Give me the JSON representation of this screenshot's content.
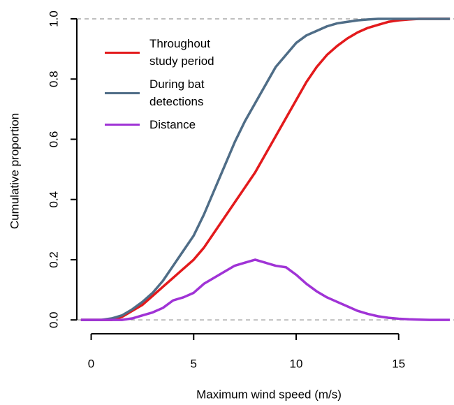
{
  "chart_data": {
    "type": "line",
    "x_label": "Maximum wind speed (m/s)",
    "y_label": "Cumulative proportion",
    "x": [
      -0.5,
      0,
      0.5,
      1,
      1.5,
      2,
      2.5,
      3,
      3.5,
      4,
      4.5,
      5,
      5.5,
      6,
      6.5,
      7,
      7.5,
      8,
      8.5,
      9,
      9.5,
      10,
      10.5,
      11,
      11.5,
      12,
      12.5,
      13,
      13.5,
      14,
      14.5,
      15,
      15.5,
      16,
      16.5,
      17,
      17.5
    ],
    "series": [
      {
        "name": "Throughout study period",
        "color": "#e31a1c",
        "values": [
          0,
          0,
          0,
          0,
          0.01,
          0.03,
          0.05,
          0.08,
          0.11,
          0.14,
          0.17,
          0.2,
          0.24,
          0.29,
          0.34,
          0.39,
          0.44,
          0.49,
          0.55,
          0.61,
          0.67,
          0.73,
          0.79,
          0.84,
          0.88,
          0.91,
          0.935,
          0.955,
          0.97,
          0.98,
          0.99,
          0.995,
          0.998,
          1,
          1,
          1,
          1
        ]
      },
      {
        "name": "During bat detections",
        "color": "#4f6d87",
        "values": [
          0,
          0,
          0,
          0.005,
          0.015,
          0.035,
          0.06,
          0.09,
          0.13,
          0.18,
          0.23,
          0.28,
          0.35,
          0.43,
          0.51,
          0.59,
          0.66,
          0.72,
          0.78,
          0.84,
          0.88,
          0.92,
          0.945,
          0.96,
          0.975,
          0.985,
          0.99,
          0.995,
          0.998,
          1,
          1,
          1,
          1,
          1,
          1,
          1,
          1
        ]
      },
      {
        "name": "Distance",
        "color": "#a033d6",
        "values": [
          0,
          0,
          0,
          0,
          0,
          0.005,
          0.015,
          0.025,
          0.04,
          0.065,
          0.075,
          0.09,
          0.12,
          0.14,
          0.16,
          0.18,
          0.19,
          0.2,
          0.19,
          0.18,
          0.175,
          0.15,
          0.12,
          0.095,
          0.075,
          0.06,
          0.045,
          0.03,
          0.02,
          0.012,
          0.007,
          0.004,
          0.002,
          0.001,
          0,
          0,
          0
        ]
      }
    ],
    "xlim": [
      -0.7,
      17.7
    ],
    "ylim": [
      -0.046,
      1.044
    ],
    "xticks": [
      0,
      5,
      10,
      15
    ],
    "yticks": [
      {
        "value": 0,
        "label": "0.0"
      },
      {
        "value": 0.2,
        "label": "0.2"
      },
      {
        "value": 0.4,
        "label": "0.4"
      },
      {
        "value": 0.6,
        "label": "0.6"
      },
      {
        "value": 0.8,
        "label": "0.8"
      },
      {
        "value": 1,
        "label": "1.0"
      }
    ],
    "reference_lines": [
      0,
      1
    ],
    "legend": "top-left"
  }
}
